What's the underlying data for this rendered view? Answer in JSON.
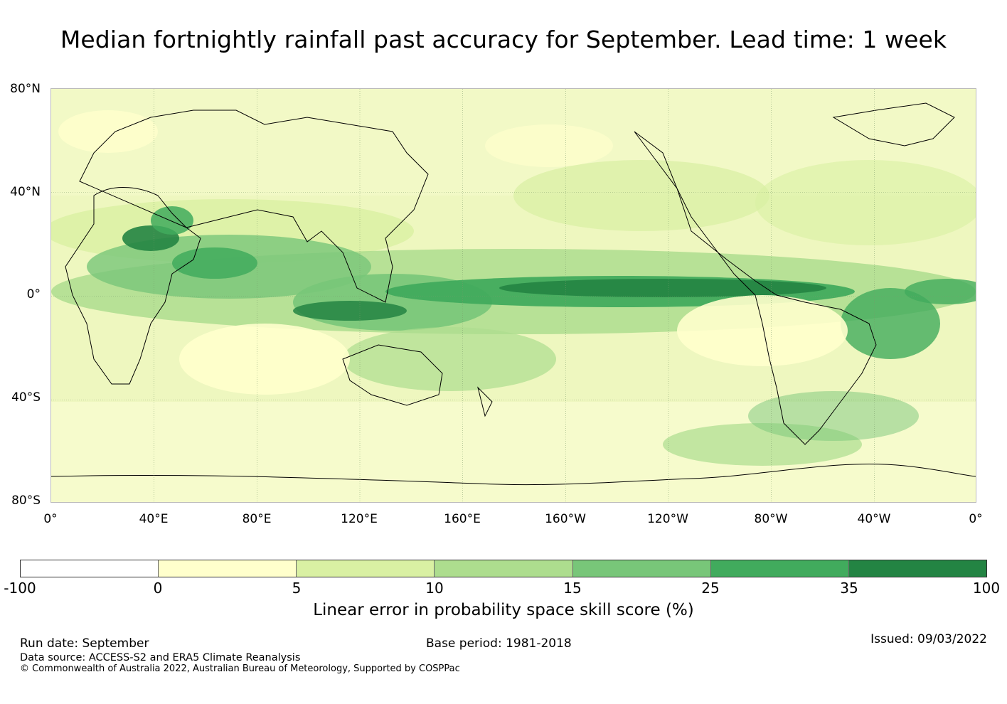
{
  "title": "Median fortnightly rainfall past accuracy for September. Lead time: 1 week",
  "map": {
    "lat_labels": [
      "80°N",
      "40°N",
      "0°",
      "40°S",
      "80°S"
    ],
    "lon_labels": [
      "0°",
      "40°E",
      "80°E",
      "120°E",
      "160°E",
      "160°W",
      "120°W",
      "80°W",
      "40°W",
      "0°"
    ],
    "gridline_color": "#7a9a6a"
  },
  "colorbar": {
    "colors": [
      "#ffffff",
      "#ffffcc",
      "#d9f0a3",
      "#addd8e",
      "#78c679",
      "#41ab5d",
      "#238443"
    ],
    "ticks": [
      "-100",
      "0",
      "5",
      "10",
      "15",
      "25",
      "35",
      "100"
    ],
    "label": "Linear error in probability space skill score (%)"
  },
  "footer": {
    "run_date": "Run date: September",
    "base_period": "Base period: 1981-2018",
    "issued": "Issued: 09/03/2022",
    "data_source": "Data source: ACCESS-S2 and ERA5 Climate Reanalysis",
    "copyright": "© Commonwealth of Australia 2022, Australian Bureau of Meteorology, Supported by COSPPac"
  }
}
